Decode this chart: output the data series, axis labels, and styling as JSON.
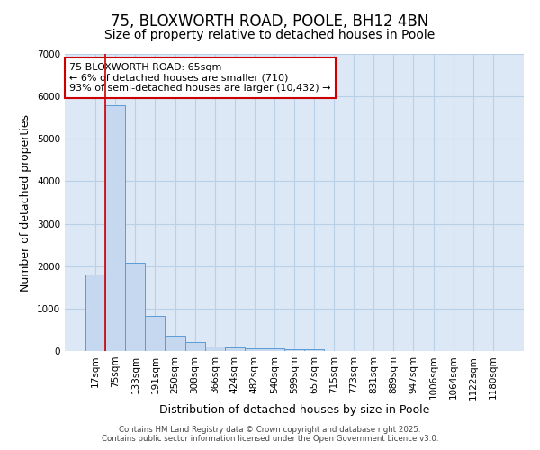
{
  "title1": "75, BLOXWORTH ROAD, POOLE, BH12 4BN",
  "title2": "Size of property relative to detached houses in Poole",
  "xlabel": "Distribution of detached houses by size in Poole",
  "ylabel": "Number of detached properties",
  "categories": [
    "17sqm",
    "75sqm",
    "133sqm",
    "191sqm",
    "250sqm",
    "308sqm",
    "366sqm",
    "424sqm",
    "482sqm",
    "540sqm",
    "599sqm",
    "657sqm",
    "715sqm",
    "773sqm",
    "831sqm",
    "889sqm",
    "947sqm",
    "1006sqm",
    "1064sqm",
    "1122sqm",
    "1180sqm"
  ],
  "values": [
    1800,
    5800,
    2080,
    820,
    360,
    220,
    110,
    90,
    60,
    55,
    50,
    50,
    0,
    0,
    0,
    0,
    0,
    0,
    0,
    0,
    0
  ],
  "bar_color": "#c5d8f0",
  "bar_edge_color": "#5b9bd5",
  "red_line_bar_index": 1,
  "annotation_line1": "75 BLOXWORTH ROAD: 65sqm",
  "annotation_line2": "← 6% of detached houses are smaller (710)",
  "annotation_line3": "93% of semi-detached houses are larger (10,432) →",
  "annotation_box_facecolor": "#ffffff",
  "annotation_border_color": "#cc0000",
  "ylim": [
    0,
    7000
  ],
  "yticks": [
    0,
    1000,
    2000,
    3000,
    4000,
    5000,
    6000,
    7000
  ],
  "fig_background": "#ffffff",
  "plot_background": "#dce8f5",
  "grid_color": "#b8d0e8",
  "footer1": "Contains HM Land Registry data © Crown copyright and database right 2025.",
  "footer2": "Contains public sector information licensed under the Open Government Licence v3.0.",
  "title1_fontsize": 12,
  "title2_fontsize": 10,
  "ylabel_fontsize": 9,
  "xlabel_fontsize": 9,
  "tick_fontsize": 7.5,
  "annot_fontsize": 8
}
